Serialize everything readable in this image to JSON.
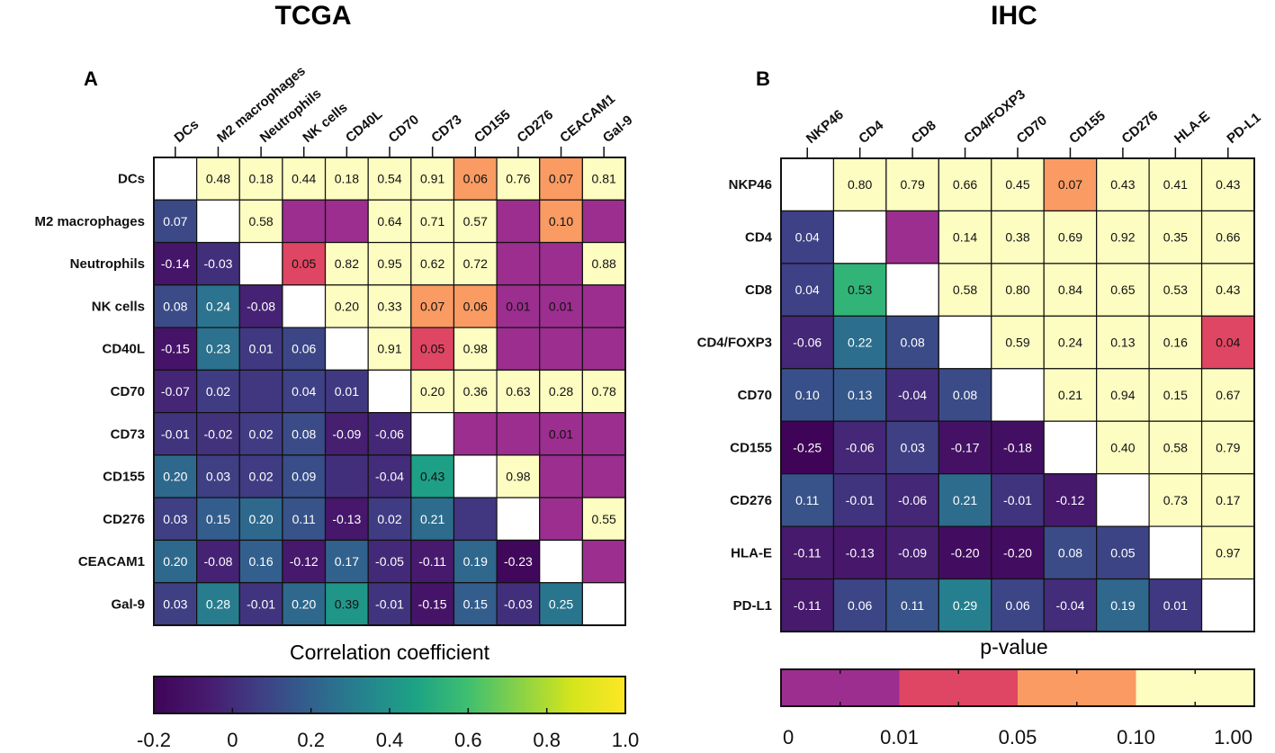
{
  "chart_data": [
    {
      "type": "heatmap",
      "panel": "A",
      "title": "TCGA",
      "rows": [
        "DCs",
        "M2 macrophages",
        "Neutrophils",
        "NK cells",
        "CD40L",
        "CD70",
        "CD73",
        "CD155",
        "CD276",
        "CEACAM1",
        "Gal-9"
      ],
      "columns": [
        "DCs",
        "M2 macrophages",
        "Neutrophils",
        "NK cells",
        "CD40L",
        "CD70",
        "CD73",
        "CD155",
        "CD276",
        "CEACAM1",
        "Gal-9"
      ],
      "values": [
        [
          null,
          0.48,
          0.18,
          0.44,
          0.18,
          0.54,
          0.91,
          0.06,
          0.76,
          0.07,
          0.81
        ],
        [
          0.07,
          null,
          0.58,
          0.005,
          0.005,
          0.64,
          0.71,
          0.57,
          0.005,
          0.1,
          0.005
        ],
        [
          -0.14,
          -0.03,
          null,
          0.05,
          0.82,
          0.95,
          0.62,
          0.72,
          0.005,
          0.005,
          0.88
        ],
        [
          0.08,
          0.24,
          -0.08,
          null,
          0.2,
          0.33,
          0.07,
          0.06,
          0.01,
          0.01,
          0.005
        ],
        [
          -0.15,
          0.23,
          0.01,
          0.06,
          null,
          0.91,
          0.05,
          0.98,
          0.005,
          0.005,
          0.005
        ],
        [
          -0.07,
          0.02,
          0.0,
          0.04,
          0.01,
          null,
          0.2,
          0.36,
          0.63,
          0.28,
          0.78
        ],
        [
          -0.01,
          -0.02,
          0.02,
          0.08,
          -0.09,
          -0.06,
          null,
          0.005,
          0.005,
          0.01,
          0.005
        ],
        [
          0.2,
          0.03,
          0.02,
          0.09,
          -0.03,
          -0.04,
          0.43,
          null,
          0.98,
          0.005,
          0.005
        ],
        [
          0.03,
          0.15,
          0.2,
          0.11,
          -0.13,
          0.02,
          0.21,
          0.0,
          null,
          0.005,
          0.55
        ],
        [
          0.2,
          -0.08,
          0.16,
          -0.12,
          0.17,
          -0.05,
          -0.11,
          0.19,
          -0.23,
          null,
          0.005
        ],
        [
          0.03,
          0.28,
          -0.01,
          0.2,
          0.39,
          -0.01,
          -0.15,
          0.15,
          -0.03,
          0.25,
          null
        ]
      ],
      "labels": [
        [
          "",
          "0.48",
          "0.18",
          "0.44",
          "0.18",
          "0.54",
          "0.91",
          "0.06",
          "0.76",
          "0.07",
          "0.81"
        ],
        [
          "0.07",
          "",
          "0.58",
          "",
          "",
          "0.64",
          "0.71",
          "0.57",
          "",
          "0.10",
          ""
        ],
        [
          "-0.14",
          "-0.03",
          "",
          "0.05",
          "0.82",
          "0.95",
          "0.62",
          "0.72",
          "",
          "",
          "0.88"
        ],
        [
          "0.08",
          "0.24",
          "-0.08",
          "",
          "0.20",
          "0.33",
          "0.07",
          "0.06",
          "0.01",
          "0.01",
          ""
        ],
        [
          "-0.15",
          "0.23",
          "0.01",
          "0.06",
          "",
          "0.91",
          "0.05",
          "0.98",
          "",
          "",
          ""
        ],
        [
          "-0.07",
          "0.02",
          "",
          "0.04",
          "0.01",
          "",
          "0.20",
          "0.36",
          "0.63",
          "0.28",
          "0.78"
        ],
        [
          "-0.01",
          "-0.02",
          "0.02",
          "0.08",
          "-0.09",
          "-0.06",
          "",
          "",
          "",
          "0.01",
          ""
        ],
        [
          "0.20",
          "0.03",
          "0.02",
          "0.09",
          "",
          "-0.04",
          "0.43",
          "",
          "0.98",
          "",
          ""
        ],
        [
          "0.03",
          "0.15",
          "0.20",
          "0.11",
          "-0.13",
          "0.02",
          "0.21",
          "",
          "",
          "",
          "0.55"
        ],
        [
          "0.20",
          "-0.08",
          "0.16",
          "-0.12",
          "0.17",
          "-0.05",
          "-0.11",
          "0.19",
          "-0.23",
          "",
          ""
        ],
        [
          "0.03",
          "0.28",
          "-0.01",
          "0.20",
          "0.39",
          "-0.01",
          "-0.15",
          "0.15",
          "-0.03",
          "0.25",
          ""
        ]
      ],
      "upper_triangle": "p-value",
      "lower_triangle": "correlation coefficient",
      "legend": {
        "title": "Correlation coefficient",
        "ticks": [
          "-0.2",
          "0",
          "0.2",
          "0.4",
          "0.6",
          "0.8",
          "1.0"
        ],
        "range": [
          -0.2,
          1.0
        ]
      }
    },
    {
      "type": "heatmap",
      "panel": "B",
      "title": "IHC",
      "rows": [
        "NKP46",
        "CD4",
        "CD8",
        "CD4/FOXP3",
        "CD70",
        "CD155",
        "CD276",
        "HLA-E",
        "PD-L1"
      ],
      "columns": [
        "NKP46",
        "CD4",
        "CD8",
        "CD4/FOXP3",
        "CD70",
        "CD155",
        "CD276",
        "HLA-E",
        "PD-L1"
      ],
      "values": [
        [
          null,
          0.8,
          0.79,
          0.66,
          0.45,
          0.07,
          0.43,
          0.41,
          0.43
        ],
        [
          0.04,
          null,
          0.005,
          0.14,
          0.38,
          0.69,
          0.92,
          0.35,
          0.66
        ],
        [
          0.04,
          0.53,
          null,
          0.58,
          0.8,
          0.84,
          0.65,
          0.53,
          0.43
        ],
        [
          -0.06,
          0.22,
          0.08,
          null,
          0.59,
          0.24,
          0.13,
          0.16,
          0.04
        ],
        [
          0.1,
          0.13,
          -0.04,
          0.08,
          null,
          0.21,
          0.94,
          0.15,
          0.67
        ],
        [
          -0.25,
          -0.06,
          0.03,
          -0.17,
          -0.18,
          null,
          0.4,
          0.58,
          0.79
        ],
        [
          0.11,
          -0.01,
          -0.06,
          0.21,
          -0.01,
          -0.12,
          null,
          0.73,
          0.17
        ],
        [
          -0.11,
          -0.13,
          -0.09,
          -0.2,
          -0.2,
          0.08,
          0.05,
          null,
          0.97
        ],
        [
          -0.11,
          0.06,
          0.11,
          0.29,
          0.06,
          -0.04,
          0.19,
          0.01,
          null
        ]
      ],
      "labels": [
        [
          "",
          "0.80",
          "0.79",
          "0.66",
          "0.45",
          "0.07",
          "0.43",
          "0.41",
          "0.43"
        ],
        [
          "0.04",
          "",
          "",
          "0.14",
          "0.38",
          "0.69",
          "0.92",
          "0.35",
          "0.66"
        ],
        [
          "0.04",
          "0.53",
          "",
          "0.58",
          "0.80",
          "0.84",
          "0.65",
          "0.53",
          "0.43"
        ],
        [
          "-0.06",
          "0.22",
          "0.08",
          "",
          "0.59",
          "0.24",
          "0.13",
          "0.16",
          "0.04"
        ],
        [
          "0.10",
          "0.13",
          "-0.04",
          "0.08",
          "",
          "0.21",
          "0.94",
          "0.15",
          "0.67"
        ],
        [
          "-0.25",
          "-0.06",
          "0.03",
          "-0.17",
          "-0.18",
          "",
          "0.40",
          "0.58",
          "0.79"
        ],
        [
          "0.11",
          "-0.01",
          "-0.06",
          "0.21",
          "-0.01",
          "-0.12",
          "",
          "0.73",
          "0.17"
        ],
        [
          "-0.11",
          "-0.13",
          "-0.09",
          "-0.20",
          "-0.20",
          "0.08",
          "0.05",
          "",
          "0.97"
        ],
        [
          "-0.11",
          "0.06",
          "0.11",
          "0.29",
          "0.06",
          "-0.04",
          "0.19",
          "0.01",
          ""
        ]
      ],
      "upper_triangle": "p-value",
      "lower_triangle": "correlation coefficient",
      "legend": {
        "title": "p-value",
        "ticks": [
          "0",
          "0.01",
          "0.05",
          "0.10",
          "1.00"
        ],
        "bins": [
          [
            0,
            0.01
          ],
          [
            0.01,
            0.05
          ],
          [
            0.05,
            0.1
          ],
          [
            0.1,
            1.0
          ]
        ]
      }
    }
  ],
  "colors": {
    "p_bins": [
      "#9c2e8f",
      "#df4663",
      "#f99b63",
      "#fdfdc2"
    ],
    "viridis_stops": [
      "#3f0458",
      "#471a6e",
      "#3f3e84",
      "#31618d",
      "#25838e",
      "#1da385",
      "#3fbf70",
      "#8ad246",
      "#d5e51c",
      "#fde725"
    ]
  }
}
